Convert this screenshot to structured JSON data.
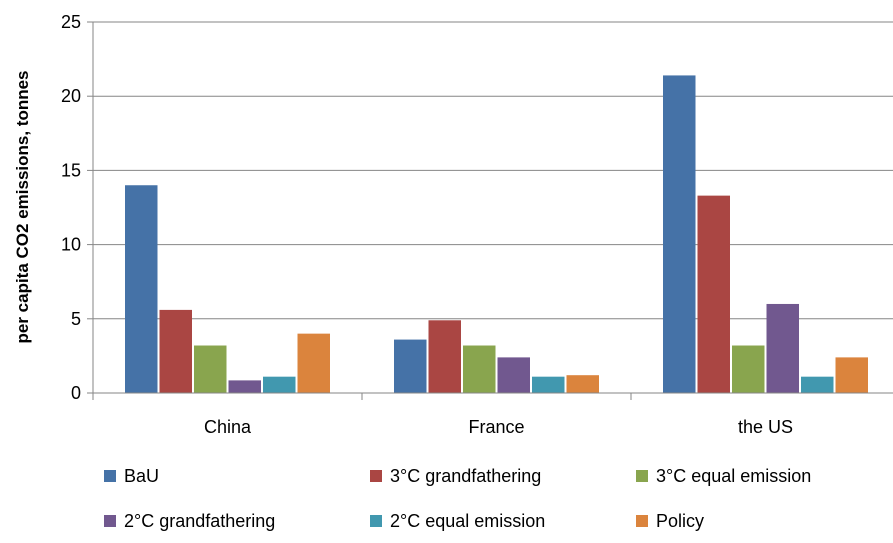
{
  "chart_data": {
    "type": "bar",
    "title": "",
    "xlabel": "",
    "ylabel": "per capita CO2 emissions, tonnes",
    "ylim": [
      0,
      25
    ],
    "yticks": [
      0,
      5,
      10,
      15,
      20,
      25
    ],
    "grid": true,
    "legend_position": "bottom",
    "categories": [
      "China",
      "France",
      "the US"
    ],
    "series": [
      {
        "name": "BaU",
        "color": "#4572A7",
        "values": [
          14.0,
          3.6,
          21.4
        ]
      },
      {
        "name": "3°C grandfathering",
        "color": "#AA4643",
        "values": [
          5.6,
          4.9,
          13.3
        ]
      },
      {
        "name": "3°C equal emission",
        "color": "#89A54E",
        "values": [
          3.2,
          3.2,
          3.2
        ]
      },
      {
        "name": "2°C grandfathering",
        "color": "#71588F",
        "values": [
          0.85,
          2.4,
          6.0
        ]
      },
      {
        "name": "2°C equal emission",
        "color": "#4198AF",
        "values": [
          1.1,
          1.1,
          1.1
        ]
      },
      {
        "name": "Policy",
        "color": "#DB843D",
        "values": [
          4.0,
          1.2,
          2.4
        ]
      }
    ]
  }
}
